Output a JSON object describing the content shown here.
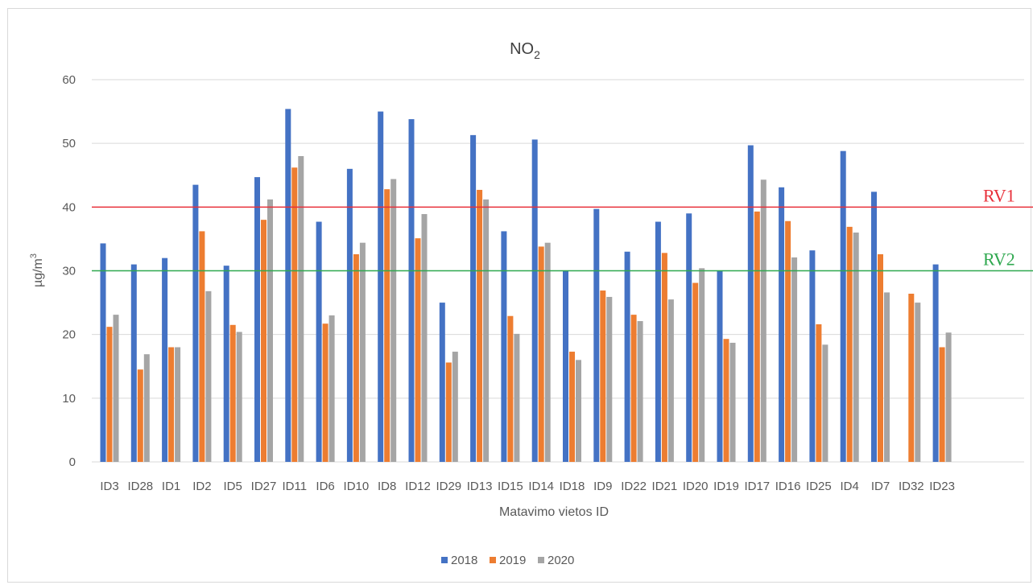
{
  "chart_data": {
    "type": "bar",
    "title": "NO",
    "title_subscript": "2",
    "xlabel": "Matavimo vietos ID",
    "ylabel": "µg/m",
    "ylabel_superscript": "3",
    "ylim": [
      0,
      60
    ],
    "yticks": [
      0,
      10,
      20,
      30,
      40,
      50,
      60
    ],
    "grid": "horizontal",
    "legend_position": "bottom",
    "categories": [
      "ID3",
      "ID28",
      "ID1",
      "ID2",
      "ID5",
      "ID27",
      "ID11",
      "ID6",
      "ID10",
      "ID8",
      "ID12",
      "ID29",
      "ID13",
      "ID15",
      "ID14",
      "ID18",
      "ID9",
      "ID22",
      "ID21",
      "ID20",
      "ID19",
      "ID17",
      "ID16",
      "ID25",
      "ID4",
      "ID7",
      "ID32",
      "ID23"
    ],
    "series": [
      {
        "name": "2018",
        "color": "#4472c4",
        "values": [
          34.3,
          31.0,
          32.0,
          43.5,
          30.8,
          44.7,
          55.4,
          37.7,
          46.0,
          55.0,
          53.8,
          25.0,
          51.3,
          36.2,
          50.6,
          30.0,
          39.7,
          33.0,
          37.7,
          39.0,
          30.0,
          49.7,
          43.1,
          33.2,
          48.8,
          42.4,
          null,
          31.0
        ]
      },
      {
        "name": "2019",
        "color": "#ed7d31",
        "values": [
          21.2,
          14.5,
          18.0,
          36.2,
          21.5,
          38.0,
          46.2,
          21.7,
          32.6,
          42.8,
          35.1,
          15.6,
          42.7,
          22.9,
          33.8,
          17.3,
          26.9,
          23.1,
          32.8,
          28.1,
          19.3,
          39.3,
          37.8,
          21.6,
          36.9,
          32.6,
          26.4,
          18.0
        ]
      },
      {
        "name": "2020",
        "color": "#a5a5a5",
        "values": [
          23.1,
          16.9,
          18.0,
          26.8,
          20.4,
          41.2,
          48.0,
          23.0,
          34.4,
          44.4,
          38.9,
          17.3,
          41.2,
          20.1,
          34.4,
          16.0,
          25.9,
          22.1,
          25.5,
          30.4,
          18.7,
          44.3,
          32.1,
          18.4,
          36.0,
          26.6,
          25.0,
          20.3
        ]
      }
    ],
    "reference_lines": [
      {
        "label": "RV1",
        "value": 40,
        "color": "#e8303a"
      },
      {
        "label": "RV2",
        "value": 30,
        "color": "#2fa84f"
      }
    ]
  }
}
